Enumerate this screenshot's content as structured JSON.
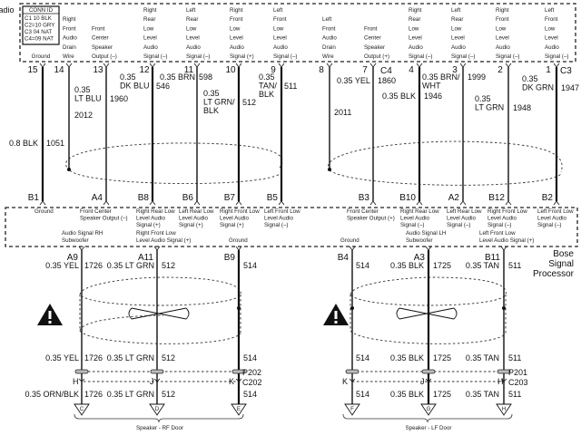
{
  "title": "Radio",
  "conn_id": {
    "header": "CONN ID",
    "rows": [
      "C1  10 BLK",
      "C2=10 GRY",
      "C3  04 NAT",
      "C4=09 NAT"
    ]
  },
  "radio": {
    "ground_label": "Ground",
    "pin_labels": [
      [
        "Right",
        "Front",
        "Audio",
        "Drain",
        "Wire"
      ],
      [
        "Front",
        "Center",
        "Speaker",
        "Output (–)"
      ],
      [
        "Right",
        "Rear",
        "Low",
        "Level",
        "Audio",
        "Signal (–)"
      ],
      [
        "Left",
        "Rear",
        "Low",
        "Level",
        "Audio",
        "Signal (–)"
      ],
      [
        "Right",
        "Front",
        "Low",
        "Level",
        "Audio",
        "Signal (+)"
      ],
      [
        "Left",
        "Front",
        "Low",
        "Level",
        "Audio",
        "Signal (–)"
      ],
      [
        "Left",
        "Front",
        "Audio",
        "Drain",
        "Wire"
      ],
      [
        "Front",
        "Center",
        "Speaker",
        "Output (+)"
      ],
      [
        "Right",
        "Rear",
        "Low",
        "Level",
        "Audio",
        "Signal (–)"
      ],
      [
        "Left",
        "Rear",
        "Low",
        "Level",
        "Audio",
        "Signal (–)"
      ],
      [
        "Right",
        "Front",
        "Low",
        "Level",
        "Audio",
        "Signal (–)"
      ],
      [
        "Left",
        "Front",
        "Low",
        "Level",
        "Audio",
        "Signal (–)"
      ]
    ],
    "pins": [
      "15",
      "14",
      "13",
      "12",
      "11",
      "10",
      "9",
      "8",
      "7",
      "4",
      "3",
      "2",
      "1"
    ],
    "connectors": [
      "C4",
      "C3"
    ]
  },
  "upper_wires": [
    [
      "0.35",
      "LT BLU"
    ],
    "1960",
    "2012",
    [
      "0.35",
      "DK BLU"
    ],
    "546",
    "0.35 BRN",
    "598",
    [
      "0.35",
      "LT GRN/",
      "BLK"
    ],
    "512",
    [
      "0.35",
      "TAN/",
      "BLK"
    ],
    "511",
    "0.8 BLK",
    "1051",
    "0.35 YEL",
    "1860",
    "2011",
    "0.35 BLK",
    "1946",
    [
      "0.35 BRN/",
      "WHT"
    ],
    "1999",
    [
      "0.35",
      "LT GRN"
    ],
    "1948",
    [
      "0.35",
      "DK GRN"
    ],
    "1947"
  ],
  "bose": {
    "title": [
      "Bose",
      "Signal",
      "Processor"
    ],
    "top_pins": [
      "B1",
      "A4",
      "B8",
      "B6",
      "B7",
      "B5",
      "B3",
      "B10",
      "A2",
      "B12",
      "B2"
    ],
    "top_labels": [
      [
        "Ground"
      ],
      [
        "Front Center",
        "Speaker Output (–)"
      ],
      [
        "Right Rear Low",
        "Level Audio",
        "Signal (+)"
      ],
      [
        "Left Rear Low",
        "Level Audio",
        "Signal (+)"
      ],
      [
        "Right Front Low",
        "Level Audio",
        "Signal (+)"
      ],
      [
        "Left Front Low",
        "Level Audio",
        "Signal (–)"
      ],
      [
        "Front Center",
        "Speaker Output (+)"
      ],
      [
        "Right Rear Low",
        "Level Audio",
        "Signal (–)"
      ],
      [
        "Left Rear Low",
        "Level Audio",
        "Signal (–)"
      ],
      [
        "Right Front Low",
        "Level Audio",
        "Signal (–)"
      ],
      [
        "Left Front Low",
        "Level Audio",
        "Signal (–)"
      ]
    ],
    "bottom_labels": [
      [
        "Audio Signal RH",
        "Subwoofer"
      ],
      [
        "Right Front Low",
        "Level Audio Signal (+)"
      ],
      [
        "Ground"
      ],
      [
        "Ground"
      ],
      [
        "Audio Signal LH",
        "Subwoofer"
      ],
      [
        "Left Front Low",
        "Level Audio Signal (+)"
      ]
    ],
    "bottom_pins": [
      "A9",
      "A11",
      "B9",
      "B4",
      "A3",
      "B11"
    ]
  },
  "rf_door": {
    "upper": [
      "0.35 YEL",
      "1726",
      "0.35 LT GRN",
      "512",
      "514"
    ],
    "lower_shield": [
      "0.35 YEL",
      "1726",
      "0.35 LT GRN",
      "512",
      "514"
    ],
    "connector_p": "P202",
    "connector_c": "C202",
    "cavities": [
      "H",
      "J",
      "K"
    ],
    "door_side": [
      "0.35 ORN/BLK",
      "1726",
      "0.35 LT GRN",
      "512",
      "514"
    ],
    "terminals": [
      "C",
      "D",
      "E"
    ],
    "label": "Speaker - RF Door"
  },
  "lf_door": {
    "upper": [
      "514",
      "0.35 BLK",
      "1725",
      "0.35 TAN",
      "511"
    ],
    "lower_shield": [
      "514",
      "0.35 BLK",
      "1725",
      "0.35 TAN",
      "511"
    ],
    "connector_p": "P201",
    "connector_c": "C203",
    "cavities": [
      "K",
      "J",
      "H"
    ],
    "door_side": [
      "514",
      "0.35 BLK",
      "1725",
      "0.35 TAN",
      "511"
    ],
    "terminals": [
      "F",
      "G",
      "H"
    ],
    "label": "Speaker - LF Door"
  },
  "icons": {
    "warning": "warning-triangle-icon",
    "twist": "twisted-pair-icon"
  }
}
